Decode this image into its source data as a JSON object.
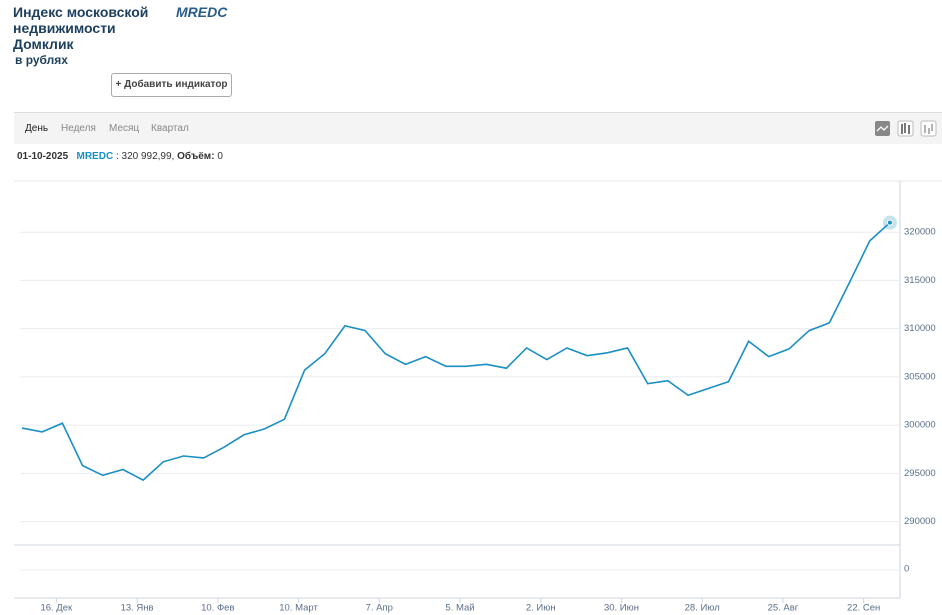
{
  "header": {
    "title": "Индекс московской недвижимости Домклик",
    "ticker": "MREDC",
    "subtitle": "в рублях",
    "button": "+ Добавить индикатор"
  },
  "toolbar": {
    "tabs": [
      "День",
      "Неделя",
      "Месяц",
      "Квартал"
    ]
  },
  "info": {
    "date": "01-10-2025",
    "symbol": "MREDC",
    "value_text": ": 320 992,99,",
    "volume_label": "Объём:",
    "volume": 0
  },
  "chart_data": {
    "type": "line",
    "color": "#1a8fc4",
    "values": [
      299700,
      299300,
      300200,
      295800,
      294800,
      295400,
      294300,
      296200,
      296800,
      296600,
      297700,
      299000,
      299600,
      300600,
      305700,
      307400,
      310300,
      309800,
      307400,
      306300,
      307100,
      306100,
      306100,
      306300,
      305900,
      308000,
      306800,
      308000,
      307200,
      307500,
      308000,
      304300,
      304600,
      303100,
      303800,
      304500,
      308700,
      307100,
      307900,
      309800,
      310600,
      314800,
      319100,
      320992.99
    ],
    "xlim": [
      -0.1,
      43.5
    ],
    "xticks": [
      {
        "value": 1.7,
        "label": "16. Дек"
      },
      {
        "value": 5.7,
        "label": "13. Янв"
      },
      {
        "value": 9.7,
        "label": "10. Фев"
      },
      {
        "value": 13.7,
        "label": "10. Март"
      },
      {
        "value": 17.7,
        "label": "7. Апр"
      },
      {
        "value": 21.7,
        "label": "5. Май"
      },
      {
        "value": 25.7,
        "label": "2. Июн"
      },
      {
        "value": 29.7,
        "label": "30. Июн"
      },
      {
        "value": 33.7,
        "label": "28. Июл"
      },
      {
        "value": 37.7,
        "label": "25. Авг"
      },
      {
        "value": 41.7,
        "label": "22. Сен"
      }
    ],
    "ylim": [
      288300,
      325100
    ],
    "yticks": [
      290000,
      295000,
      300000,
      305000,
      310000,
      315000,
      320000
    ],
    "volume_yticks": [
      0
    ],
    "grid": true
  }
}
